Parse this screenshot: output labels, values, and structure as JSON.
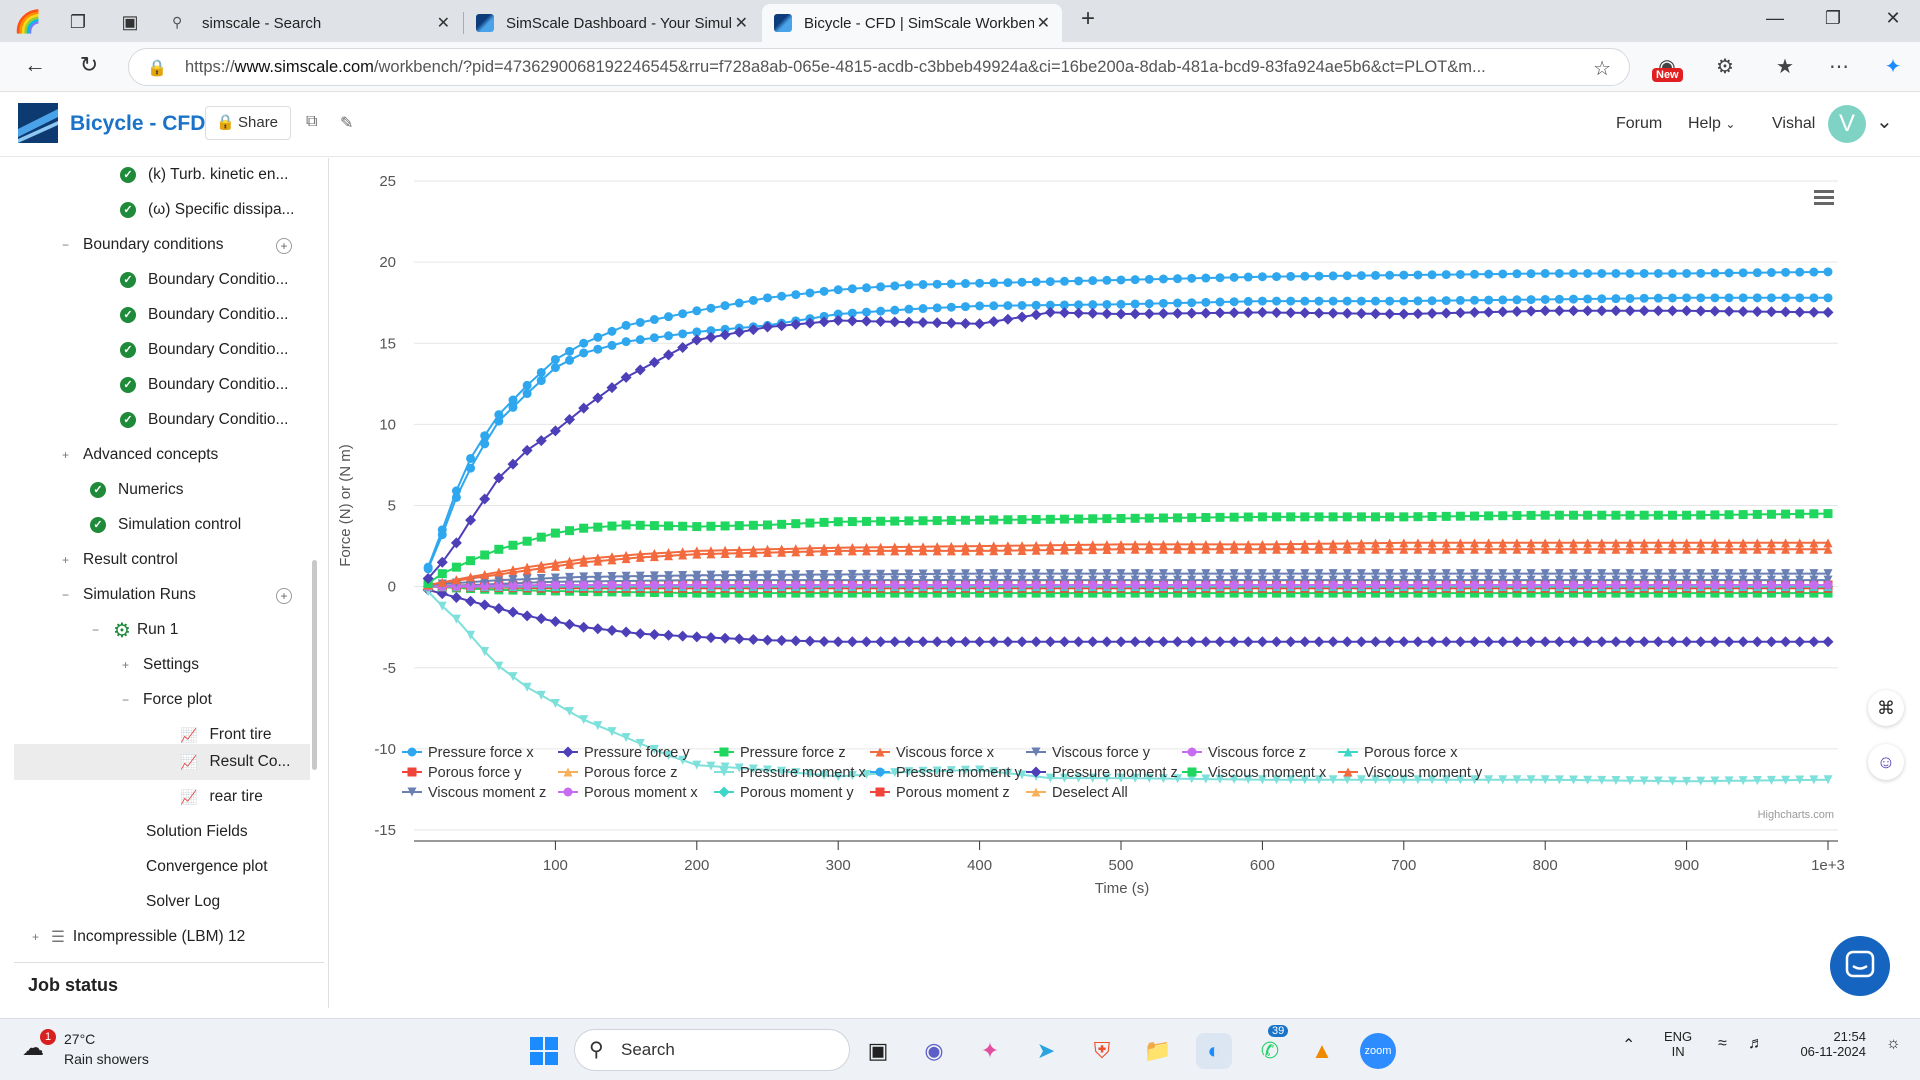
{
  "browser": {
    "tabs": [
      {
        "label": "simscale - Search"
      },
      {
        "label": "SimScale Dashboard - Your Simul"
      },
      {
        "label": "Bicycle - CFD | SimScale Workben"
      }
    ],
    "url_prefix": "https://",
    "url_host": "www.simscale.com",
    "url_rest": "/workbench/?pid=4736290068192246545&rru=f728a8ab-065e-4815-acdb-c3bbeb49924a&ci=16be200a-8dab-481a-bcd9-83fa924ae5b6&ct=PLOT&m...",
    "new_badge": "New"
  },
  "app": {
    "title": "Bicycle - CFD",
    "share_label": "Share",
    "menu_forum": "Forum",
    "menu_help": "Help",
    "user_name": "Vishal",
    "avatar_initial": "V"
  },
  "sidebar": {
    "items": [
      {
        "label": "(k) Turb. kinetic en..."
      },
      {
        "label": "(ω) Specific dissipa..."
      },
      {
        "label": "Boundary conditions"
      },
      {
        "label": "Boundary Conditio..."
      },
      {
        "label": "Boundary Conditio..."
      },
      {
        "label": "Boundary Conditio..."
      },
      {
        "label": "Boundary Conditio..."
      },
      {
        "label": "Boundary Conditio..."
      },
      {
        "label": "Advanced concepts"
      },
      {
        "label": "Numerics"
      },
      {
        "label": "Simulation control"
      },
      {
        "label": "Result control"
      },
      {
        "label": "Simulation Runs"
      },
      {
        "label": "Run 1"
      },
      {
        "label": "Settings"
      },
      {
        "label": "Force plot"
      },
      {
        "label": "Front tire"
      },
      {
        "label": "Result Co..."
      },
      {
        "label": "rear tire"
      },
      {
        "label": "Solution Fields"
      },
      {
        "label": "Convergence plot"
      },
      {
        "label": "Solver Log"
      },
      {
        "label": "Incompressible (LBM) 12"
      }
    ],
    "job_status": "Job status"
  },
  "chart_data": {
    "type": "line",
    "title": "",
    "xlabel": "Time (s)",
    "ylabel": "Force (N) or (N m)",
    "xlim": [
      0,
      1000
    ],
    "ylim": [
      -15,
      25
    ],
    "x_ticks": [
      "100",
      "200",
      "300",
      "400",
      "500",
      "600",
      "700",
      "800",
      "900",
      "1e+3"
    ],
    "y_ticks": [
      "25",
      "20",
      "15",
      "10",
      "5",
      "0",
      "-5",
      "-10",
      "-15"
    ],
    "grid": "horizontal",
    "legend_position": "bottom",
    "credits": "Highcharts.com",
    "deselect_label": "Deselect All",
    "series": [
      {
        "name": "Pressure force x",
        "color": "#2ea7ef",
        "marker": "circle",
        "points": [
          [
            10,
            1.2
          ],
          [
            20,
            3.5
          ],
          [
            30,
            5.9
          ],
          [
            40,
            7.9
          ],
          [
            50,
            9.3
          ],
          [
            60,
            10.6
          ],
          [
            80,
            12.4
          ],
          [
            100,
            14
          ],
          [
            120,
            15
          ],
          [
            150,
            16.1
          ],
          [
            200,
            17
          ],
          [
            250,
            17.8
          ],
          [
            300,
            18.3
          ],
          [
            350,
            18.6
          ],
          [
            400,
            18.7
          ],
          [
            500,
            18.9
          ],
          [
            600,
            19.1
          ],
          [
            700,
            19.2
          ],
          [
            800,
            19.3
          ],
          [
            900,
            19.3
          ],
          [
            1000,
            19.4
          ]
        ]
      },
      {
        "name": "Pressure force y",
        "color": "#4d3fb8",
        "marker": "diamond",
        "points": [
          [
            10,
            0.5
          ],
          [
            20,
            1.5
          ],
          [
            30,
            2.7
          ],
          [
            40,
            4.1
          ],
          [
            50,
            5.4
          ],
          [
            60,
            6.7
          ],
          [
            80,
            8.4
          ],
          [
            100,
            9.6
          ],
          [
            120,
            11
          ],
          [
            150,
            12.9
          ],
          [
            200,
            15.2
          ],
          [
            250,
            16
          ],
          [
            300,
            16.4
          ],
          [
            350,
            16.3
          ],
          [
            400,
            16.2
          ],
          [
            450,
            16.9
          ],
          [
            500,
            16.8
          ],
          [
            600,
            16.9
          ],
          [
            700,
            16.8
          ],
          [
            800,
            17
          ],
          [
            900,
            17
          ],
          [
            1000,
            16.9
          ]
        ]
      },
      {
        "name": "Pressure force z",
        "color": "#1fd65f",
        "marker": "square",
        "points": [
          [
            10,
            0.2
          ],
          [
            20,
            0.8
          ],
          [
            40,
            1.6
          ],
          [
            60,
            2.3
          ],
          [
            80,
            2.8
          ],
          [
            100,
            3.3
          ],
          [
            120,
            3.6
          ],
          [
            150,
            3.8
          ],
          [
            200,
            3.7
          ],
          [
            250,
            3.8
          ],
          [
            300,
            4
          ],
          [
            400,
            4.1
          ],
          [
            500,
            4.2
          ],
          [
            600,
            4.3
          ],
          [
            700,
            4.3
          ],
          [
            800,
            4.4
          ],
          [
            900,
            4.4
          ],
          [
            1000,
            4.5
          ]
        ]
      },
      {
        "name": "Viscous force x",
        "color": "#f26a3d",
        "marker": "triangle",
        "points": [
          [
            10,
            0.1
          ],
          [
            40,
            0.6
          ],
          [
            80,
            1.2
          ],
          [
            120,
            1.7
          ],
          [
            160,
            2
          ],
          [
            200,
            2.2
          ],
          [
            300,
            2.4
          ],
          [
            400,
            2.5
          ],
          [
            500,
            2.6
          ],
          [
            600,
            2.6
          ],
          [
            700,
            2.7
          ],
          [
            800,
            2.7
          ],
          [
            900,
            2.7
          ],
          [
            1000,
            2.7
          ]
        ]
      },
      {
        "name": "Viscous force y",
        "color": "#6a7fb3",
        "marker": "triangle-down",
        "points": [
          [
            10,
            0.1
          ],
          [
            60,
            0.4
          ],
          [
            120,
            0.6
          ],
          [
            200,
            0.7
          ],
          [
            400,
            0.8
          ],
          [
            600,
            0.8
          ],
          [
            800,
            0.8
          ],
          [
            1000,
            0.8
          ]
        ]
      },
      {
        "name": "Viscous force z",
        "color": "#c56cf0",
        "marker": "circle",
        "points": [
          [
            10,
            0
          ],
          [
            100,
            0.1
          ],
          [
            300,
            0.1
          ],
          [
            600,
            0.1
          ],
          [
            1000,
            0.1
          ]
        ]
      },
      {
        "name": "Porous force x",
        "color": "#3dd6c8",
        "marker": "triangle",
        "points": [
          [
            10,
            0
          ],
          [
            100,
            0
          ],
          [
            500,
            0
          ],
          [
            1000,
            0
          ]
        ]
      },
      {
        "name": "Porous force y",
        "color": "#f0443a",
        "marker": "square",
        "points": [
          [
            10,
            0
          ],
          [
            100,
            -0.1
          ],
          [
            500,
            -0.1
          ],
          [
            1000,
            -0.1
          ]
        ]
      },
      {
        "name": "Porous force z",
        "color": "#f7b15c",
        "marker": "triangle",
        "points": [
          [
            10,
            0
          ],
          [
            500,
            0
          ],
          [
            1000,
            0
          ]
        ]
      },
      {
        "name": "Pressure moment x",
        "color": "#7ee0da",
        "marker": "triangle-down",
        "points": [
          [
            10,
            -0.3
          ],
          [
            20,
            -1.2
          ],
          [
            30,
            -2
          ],
          [
            40,
            -3
          ],
          [
            50,
            -4
          ],
          [
            60,
            -4.9
          ],
          [
            80,
            -6.2
          ],
          [
            100,
            -7.2
          ],
          [
            120,
            -8.2
          ],
          [
            150,
            -9.3
          ],
          [
            180,
            -10.4
          ],
          [
            200,
            -11
          ],
          [
            250,
            -11.3
          ],
          [
            300,
            -11.7
          ],
          [
            350,
            -11.4
          ],
          [
            400,
            -11.3
          ],
          [
            450,
            -11.8
          ],
          [
            500,
            -11.8
          ],
          [
            600,
            -11.9
          ],
          [
            700,
            -11.9
          ],
          [
            800,
            -11.9
          ],
          [
            900,
            -12
          ],
          [
            1000,
            -11.9
          ]
        ]
      },
      {
        "name": "Pressure moment y",
        "color": "#2ea7ef",
        "marker": "circle",
        "points": [
          [
            10,
            1.1
          ],
          [
            20,
            3.2
          ],
          [
            30,
            5.5
          ],
          [
            40,
            7.3
          ],
          [
            50,
            8.8
          ],
          [
            60,
            10.2
          ],
          [
            80,
            11.9
          ],
          [
            100,
            13.5
          ],
          [
            120,
            14.4
          ],
          [
            150,
            15.1
          ],
          [
            200,
            15.7
          ],
          [
            250,
            16.1
          ],
          [
            300,
            16.8
          ],
          [
            350,
            17.1
          ],
          [
            400,
            17.3
          ],
          [
            500,
            17.4
          ],
          [
            600,
            17.6
          ],
          [
            700,
            17.6
          ],
          [
            800,
            17.7
          ],
          [
            900,
            17.8
          ],
          [
            1000,
            17.8
          ]
        ]
      },
      {
        "name": "Pressure moment z",
        "color": "#4d3fb8",
        "marker": "diamond",
        "points": [
          [
            10,
            -0.2
          ],
          [
            40,
            -0.9
          ],
          [
            80,
            -1.8
          ],
          [
            120,
            -2.5
          ],
          [
            160,
            -2.9
          ],
          [
            200,
            -3.1
          ],
          [
            250,
            -3.3
          ],
          [
            300,
            -3.4
          ],
          [
            400,
            -3.4
          ],
          [
            500,
            -3.4
          ],
          [
            600,
            -3.4
          ],
          [
            700,
            -3.4
          ],
          [
            800,
            -3.4
          ],
          [
            900,
            -3.4
          ],
          [
            1000,
            -3.4
          ]
        ]
      },
      {
        "name": "Viscous moment x",
        "color": "#1fd65f",
        "marker": "square",
        "points": [
          [
            10,
            0
          ],
          [
            60,
            -0.2
          ],
          [
            120,
            -0.3
          ],
          [
            200,
            -0.4
          ],
          [
            400,
            -0.4
          ],
          [
            600,
            -0.4
          ],
          [
            800,
            -0.4
          ],
          [
            1000,
            -0.4
          ]
        ]
      },
      {
        "name": "Viscous moment y",
        "color": "#f26a3d",
        "marker": "triangle",
        "points": [
          [
            10,
            0.1
          ],
          [
            40,
            0.5
          ],
          [
            80,
            1
          ],
          [
            120,
            1.5
          ],
          [
            160,
            1.8
          ],
          [
            200,
            2
          ],
          [
            300,
            2.2
          ],
          [
            400,
            2.2
          ],
          [
            500,
            2.3
          ],
          [
            600,
            2.3
          ],
          [
            700,
            2.3
          ],
          [
            800,
            2.3
          ],
          [
            900,
            2.3
          ],
          [
            1000,
            2.3
          ]
        ]
      },
      {
        "name": "Viscous moment z",
        "color": "#6a7fb3",
        "marker": "triangle-down",
        "points": [
          [
            10,
            0
          ],
          [
            100,
            0.3
          ],
          [
            200,
            0.4
          ],
          [
            500,
            0.4
          ],
          [
            1000,
            0.4
          ]
        ]
      },
      {
        "name": "Porous moment x",
        "color": "#c56cf0",
        "marker": "circle",
        "points": [
          [
            10,
            0
          ],
          [
            500,
            0
          ],
          [
            1000,
            0
          ]
        ]
      },
      {
        "name": "Porous moment y",
        "color": "#3dd6c8",
        "marker": "diamond",
        "points": [
          [
            10,
            0
          ],
          [
            500,
            0
          ],
          [
            1000,
            0
          ]
        ]
      },
      {
        "name": "Porous moment z",
        "color": "#f0443a",
        "marker": "square",
        "points": [
          [
            10,
            0
          ],
          [
            100,
            0.1
          ],
          [
            500,
            0.1
          ],
          [
            1000,
            0.1
          ]
        ]
      }
    ]
  },
  "taskbar": {
    "weather_temp": "27°C",
    "weather_desc": "Rain showers",
    "weather_badge": "1",
    "search_label": "Search",
    "whatsapp_badge": "39",
    "lang_1": "ENG",
    "lang_2": "IN",
    "time": "21:54",
    "date": "06-11-2024"
  }
}
